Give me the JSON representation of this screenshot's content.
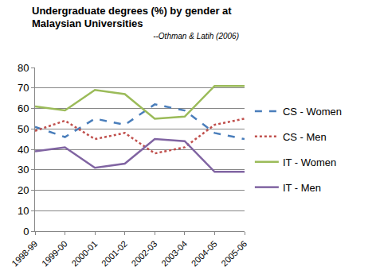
{
  "chart_data": {
    "type": "line",
    "title": "Undergraduate degrees (%) by gender at Malaysian Universities",
    "subtitle": "--Othman & Latih (2006)",
    "categories": [
      "1998-99",
      "1999-00",
      "2000-01",
      "2001-02",
      "2002-03",
      "2003-04",
      "2004-05",
      "2005-06"
    ],
    "series": [
      {
        "name": "CS - Women",
        "color": "#4a7ebb",
        "line_style": "dashed",
        "values": [
          51,
          46,
          55,
          52,
          62,
          59,
          48,
          45
        ]
      },
      {
        "name": "CS - Men",
        "color": "#c0504d",
        "line_style": "dotted",
        "values": [
          49,
          54,
          45,
          48,
          38,
          41,
          52,
          55
        ]
      },
      {
        "name": "IT - Women",
        "color": "#9bbb59",
        "line_style": "solid",
        "values": [
          61,
          59,
          69,
          67,
          55,
          56,
          71,
          71
        ]
      },
      {
        "name": "IT - Men",
        "color": "#8064a2",
        "line_style": "solid",
        "values": [
          39,
          41,
          31,
          33,
          45,
          44,
          29,
          29
        ]
      }
    ],
    "ylim": [
      0,
      80
    ],
    "yticks": [
      0,
      10,
      20,
      30,
      40,
      50,
      60,
      70,
      80
    ],
    "grid": true,
    "legend": "right"
  }
}
